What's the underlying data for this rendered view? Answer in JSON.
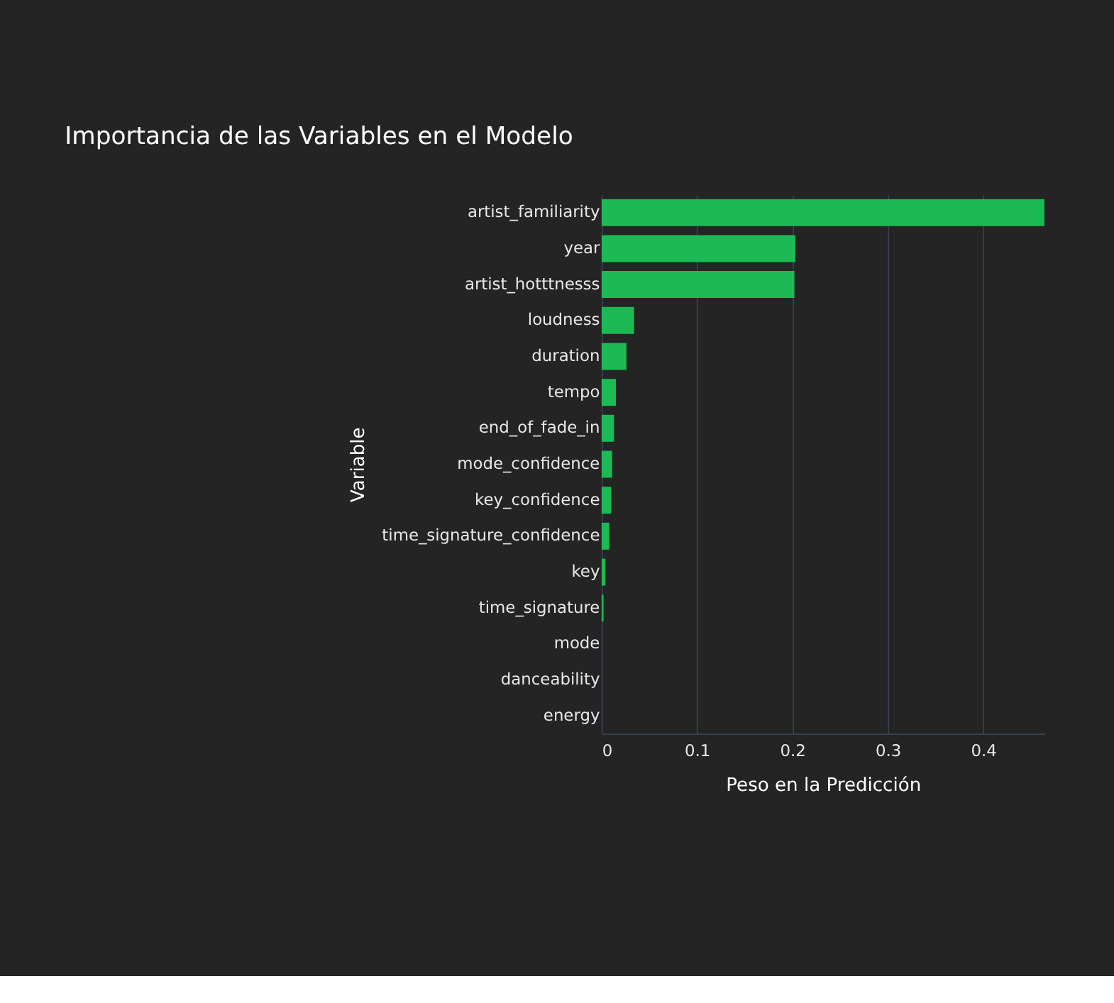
{
  "chart_data": {
    "type": "bar",
    "orientation": "horizontal",
    "title": "Importancia de las Variables en el Modelo",
    "xlabel": "Peso en la Predicción",
    "ylabel": "Variable",
    "categories": [
      "artist_familiarity",
      "year",
      "artist_hotttnesss",
      "loudness",
      "duration",
      "tempo",
      "end_of_fade_in",
      "mode_confidence",
      "key_confidence",
      "time_signature_confidence",
      "key",
      "time_signature",
      "mode",
      "danceability",
      "energy"
    ],
    "values": [
      0.464,
      0.203,
      0.202,
      0.034,
      0.026,
      0.015,
      0.013,
      0.011,
      0.01,
      0.008,
      0.004,
      0.002,
      0,
      0,
      0
    ],
    "color": "#1db954",
    "xlim": [
      0,
      0.464
    ],
    "xticks": [
      0,
      0.1,
      0.2,
      0.3,
      0.4
    ],
    "grid": "x"
  }
}
